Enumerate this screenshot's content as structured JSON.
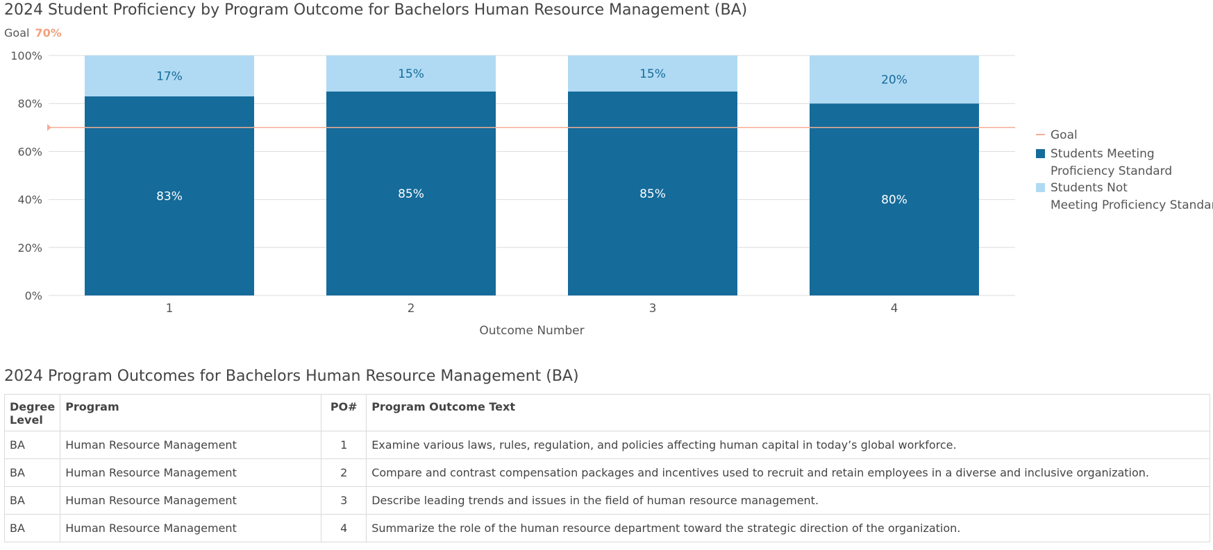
{
  "chart_title": "2024 Student Proficiency by Program Outcome for Bachelors Human Resource Management (BA)",
  "goal": {
    "label": "Goal",
    "value_label": "70%"
  },
  "chart_data": {
    "type": "bar",
    "stacked": true,
    "categories": [
      "1",
      "2",
      "3",
      "4"
    ],
    "series": [
      {
        "name": "Students Meeting Proficiency Standard",
        "values": [
          83,
          85,
          85,
          80
        ],
        "labels": [
          "83%",
          "85%",
          "85%",
          "80%"
        ],
        "color": "#156b9a"
      },
      {
        "name": "Students Not Meeting Proficiency Standard",
        "values": [
          17,
          15,
          15,
          20
        ],
        "labels": [
          "17%",
          "15%",
          "15%",
          "20%"
        ],
        "color": "#b0daf3"
      }
    ],
    "goal_line": {
      "name": "Goal",
      "value": 70,
      "color": "#f5ad95"
    },
    "xlabel": "Outcome Number",
    "ylabel": "",
    "ylim": [
      0,
      100
    ],
    "yticks": [
      0,
      20,
      40,
      60,
      80,
      100
    ],
    "ytick_labels": [
      "0%",
      "20%",
      "40%",
      "60%",
      "80%",
      "100%"
    ],
    "grid": true,
    "legend_position": "right"
  },
  "table": {
    "title": "2024 Program Outcomes for Bachelors Human Resource Management (BA)",
    "headers": [
      "Degree Level",
      "Program",
      "PO#",
      "Program Outcome Text"
    ],
    "rows": [
      [
        "BA",
        "Human Resource Management",
        "1",
        "Examine various laws, rules, regulation, and policies affecting human capital in today’s global workforce."
      ],
      [
        "BA",
        "Human Resource Management",
        "2",
        "Compare and contrast compensation packages and incentives used to recruit and retain employees in a diverse and inclusive organization."
      ],
      [
        "BA",
        "Human Resource Management",
        "3",
        "Describe leading trends and issues in the field of human resource management."
      ],
      [
        "BA",
        "Human Resource Management",
        "4",
        "Summarize the role of the human resource department toward the strategic direction of the organization."
      ]
    ]
  }
}
